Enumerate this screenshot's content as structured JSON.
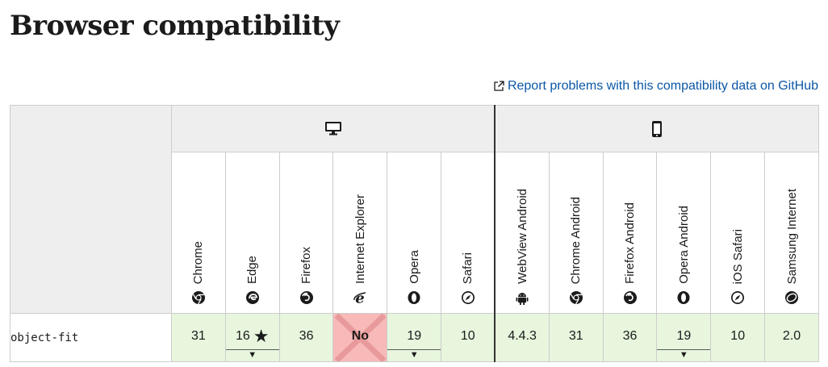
{
  "page": {
    "title": "Browser compatibility",
    "report_link": "Report problems with this compatibility data on GitHub"
  },
  "platforms": [
    {
      "name": "desktop",
      "icon": "desktop-icon"
    },
    {
      "name": "mobile",
      "icon": "mobile-icon"
    }
  ],
  "browsers": [
    {
      "name": "Chrome",
      "icon": "chrome-icon"
    },
    {
      "name": "Edge",
      "icon": "edge-icon"
    },
    {
      "name": "Firefox",
      "icon": "firefox-icon"
    },
    {
      "name": "Internet Explorer",
      "icon": "ie-icon"
    },
    {
      "name": "Opera",
      "icon": "opera-icon"
    },
    {
      "name": "Safari",
      "icon": "safari-icon"
    },
    {
      "name": "WebView Android",
      "icon": "android-icon"
    },
    {
      "name": "Chrome Android",
      "icon": "chrome-icon"
    },
    {
      "name": "Firefox Android",
      "icon": "firefox-icon"
    },
    {
      "name": "Opera Android",
      "icon": "opera-icon"
    },
    {
      "name": "iOS Safari",
      "icon": "safari-icon"
    },
    {
      "name": "Samsung Internet",
      "icon": "samsung-icon"
    }
  ],
  "feature": {
    "name": "object-fit",
    "support": [
      "31",
      "16",
      "36",
      "No",
      "19",
      "10",
      "4.4.3",
      "31",
      "36",
      "19",
      "10",
      "2.0"
    ],
    "star_symbol": "★",
    "toggle_symbol": "▼"
  },
  "colors": {
    "supported_bg": "#e7f6dd",
    "unsupported_bg": "#f8b9b9",
    "header_bg": "#eeeeee",
    "link": "#0b57a6"
  }
}
